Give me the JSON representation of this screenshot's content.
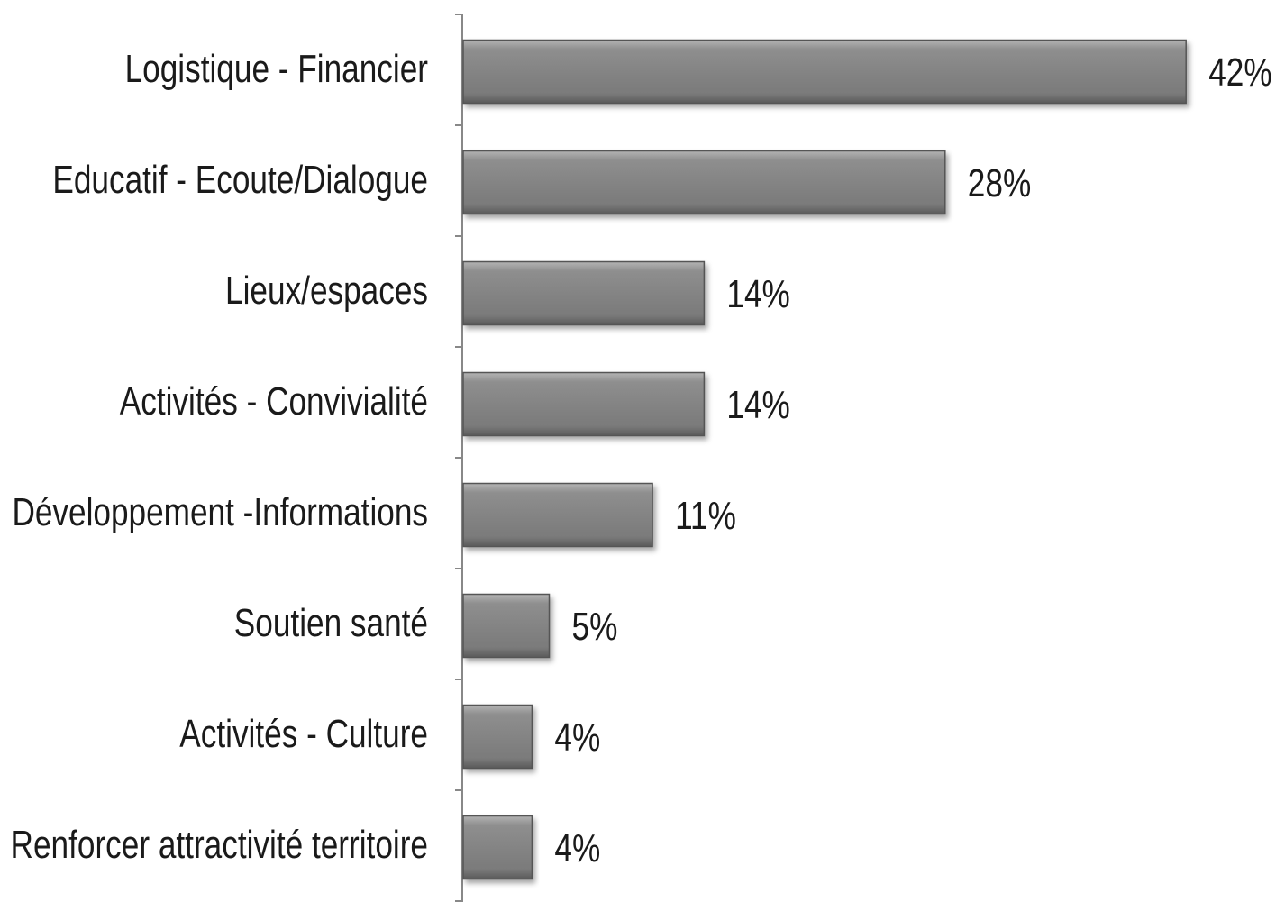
{
  "chart_data": {
    "type": "bar",
    "orientation": "horizontal",
    "categories": [
      "Logistique - Financier",
      "Educatif - Ecoute/Dialogue",
      "Lieux/espaces",
      "Activités - Convivialité",
      "Développement -Informations",
      "Soutien santé",
      "Activités - Culture",
      "Renforcer attractivité territoire"
    ],
    "values": [
      42,
      28,
      14,
      14,
      11,
      5,
      4,
      4
    ],
    "value_labels": [
      "42%",
      "28%",
      "14%",
      "14%",
      "11%",
      "5%",
      "4%",
      "4%"
    ],
    "color": "#808080"
  }
}
